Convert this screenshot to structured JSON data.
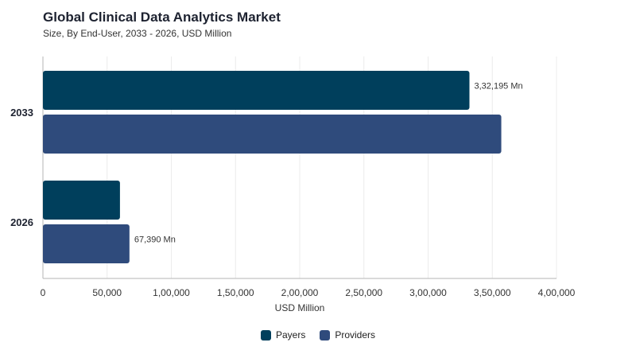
{
  "chart_data": {
    "type": "bar",
    "orientation": "horizontal",
    "title": "Global Clinical Data Analytics Market",
    "subtitle": "Size, By End-User, 2033 - 2026, USD Million",
    "xlabel": "USD Million",
    "ylabel": "",
    "categories": [
      "2033",
      "2026"
    ],
    "xlim": [
      0,
      400000
    ],
    "x_ticks": [
      0,
      50000,
      100000,
      150000,
      200000,
      250000,
      300000,
      350000,
      400000
    ],
    "x_tick_labels": [
      "0",
      "50,000",
      "1,00,000",
      "1,50,000",
      "2,00,000",
      "2,50,000",
      "3,00,000",
      "3,50,000",
      "4,00,000"
    ],
    "grid": "vertical",
    "legend_position": "bottom-center",
    "series": [
      {
        "name": "Payers",
        "color": "#003f5c",
        "values": [
          332195,
          60000
        ]
      },
      {
        "name": "Providers",
        "color": "#2f4b7c",
        "values": [
          357000,
          67390
        ]
      }
    ],
    "data_labels": [
      {
        "series": 0,
        "category": 0,
        "text": "3,32,195 Mn"
      },
      {
        "series": 1,
        "category": 1,
        "text": "67,390 Mn"
      }
    ]
  }
}
